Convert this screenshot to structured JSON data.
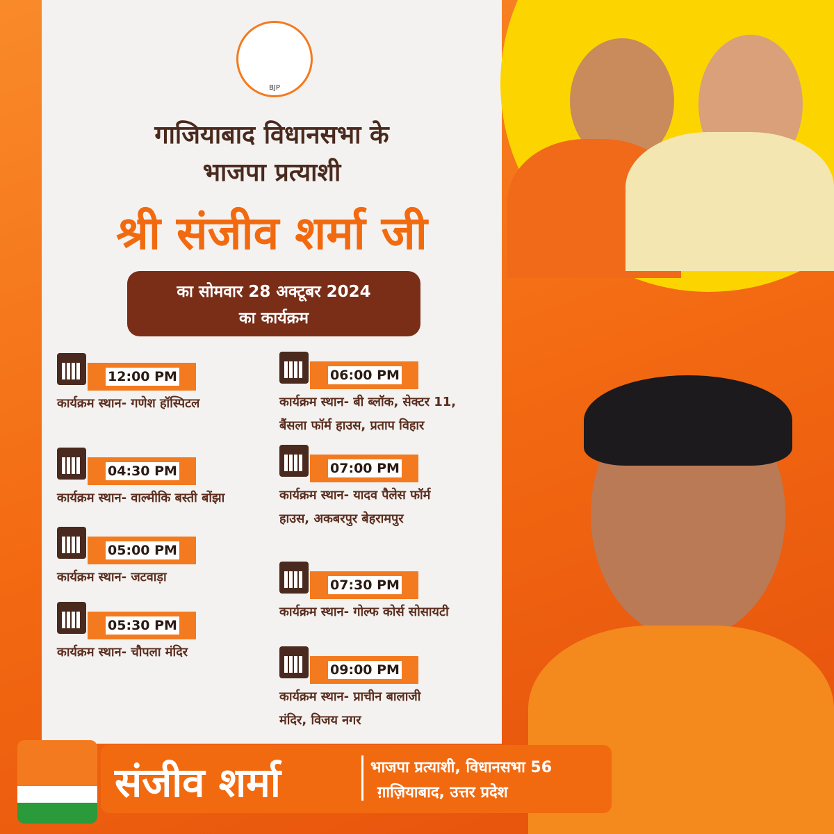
{
  "logo": {
    "label": "BJP"
  },
  "header": {
    "line1": "गाजियाबाद विधानसभा के",
    "line2": "भाजपा प्रत्याशी",
    "name": "श्री संजीव शर्मा जी"
  },
  "date_box": {
    "line1": "का सोमवार 28 अक्टूबर 2024",
    "line2": "का कार्यक्रम"
  },
  "schedule": {
    "left": [
      {
        "time": "12:00 PM",
        "venue": [
          "कार्यक्रम स्थान- गणेश हॉस्पिटल"
        ]
      },
      {
        "time": "04:30 PM",
        "venue": [
          "कार्यक्रम स्थान- वाल्मीकि बस्ती बोंझा"
        ]
      },
      {
        "time": "05:00 PM",
        "venue": [
          "कार्यक्रम स्थान- जटवाड़ा"
        ]
      },
      {
        "time": "05:30 PM",
        "venue": [
          "कार्यक्रम स्थान- चौपला मंदिर"
        ]
      }
    ],
    "right": [
      {
        "time": "06:00 PM",
        "venue": [
          "कार्यक्रम स्थान- बी ब्लॉक, सेक्टर 11,",
          "बैंसला फॉर्म हाउस, प्रताप विहार"
        ]
      },
      {
        "time": "07:00 PM",
        "venue": [
          "कार्यक्रम स्थान- यादव पैलेस फॉर्म",
          "हाउस, अकबरपुर बेहरामपुर"
        ]
      },
      {
        "time": "07:30 PM",
        "venue": [
          "कार्यक्रम स्थान- गोल्फ कोर्स सोसायटी"
        ]
      },
      {
        "time": "09:00 PM",
        "venue": [
          "कार्यक्रम स्थान- प्राचीन बालाजी",
          "मंदिर, विजय नगर"
        ]
      }
    ]
  },
  "footer": {
    "name": "संजीव शर्मा",
    "line1": "भाजपा प्रत्याशी, विधानसभा 56",
    "line2": "ग़ाज़ियाबाद, उत्तर प्रदेश"
  }
}
